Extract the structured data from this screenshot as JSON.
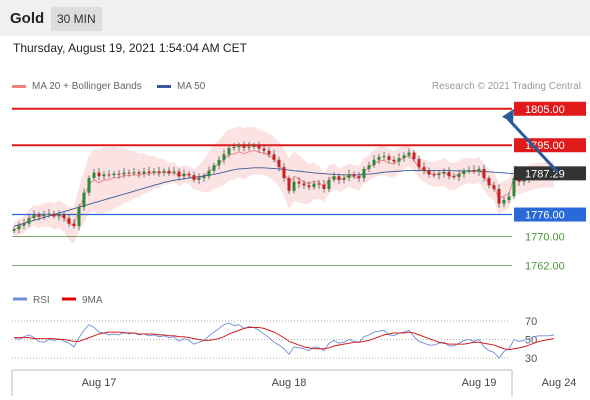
{
  "header": {
    "title": "Gold",
    "timeframe": "30 MIN"
  },
  "datetime": "Thursday, August 19, 2021 1:54:04 AM CET",
  "credit": "Research © 2021 Trading Central",
  "legend": {
    "price": [
      {
        "name": "MA 20 + Bollinger Bands",
        "color": "#f08080"
      },
      {
        "name": "MA 50",
        "color": "#3a5a9a"
      }
    ],
    "rsi": [
      {
        "name": "RSI",
        "color": "#6a8fd8"
      },
      {
        "name": "9MA",
        "color": "#e00000"
      }
    ]
  },
  "chart_data": {
    "type": "candlestick",
    "ylim": [
      1757.5,
      1808.5
    ],
    "current_price": {
      "label": "1787.29",
      "value": 1787.29
    },
    "levels": [
      {
        "label": "1805.00",
        "value": 1805.0,
        "color": "#e01a1a",
        "style": "resistance-bold"
      },
      {
        "label": "1795.00",
        "value": 1795.0,
        "color": "#e01a1a",
        "style": "resistance-bold"
      },
      {
        "label": "1776.00",
        "value": 1776.0,
        "color": "#2a6ad8",
        "style": "pivot"
      },
      {
        "label": "1770.00",
        "value": 1770.0,
        "color": "#4a9a3a",
        "style": "support"
      },
      {
        "label": "1762.00",
        "value": 1762.0,
        "color": "#4a9a3a",
        "style": "support"
      }
    ],
    "arrow": {
      "from": 1787.29,
      "to": 1805.0,
      "color": "#2a5a9a"
    },
    "x_ticks": [
      {
        "label": "Aug 17",
        "index": 17
      },
      {
        "label": "Aug 18",
        "index": 55
      },
      {
        "label": "Aug 19",
        "index": 93
      },
      {
        "label": "Aug 24",
        "index": 109
      }
    ],
    "closes": [
      1772,
      1773,
      1773.5,
      1775,
      1776,
      1775.5,
      1776,
      1776.2,
      1775.5,
      1776,
      1775,
      1773.5,
      1772.8,
      1778,
      1782,
      1786,
      1787.5,
      1786.5,
      1787,
      1786.8,
      1787.2,
      1787,
      1787.5,
      1787.3,
      1787.6,
      1787.2,
      1787.8,
      1787.4,
      1787.9,
      1787.5,
      1788,
      1787.4,
      1787.8,
      1786.5,
      1787.2,
      1786.8,
      1785.5,
      1786,
      1786.5,
      1788,
      1789.5,
      1791,
      1792.5,
      1794.2,
      1794.5,
      1795,
      1794.3,
      1794.6,
      1794.8,
      1794.1,
      1793.5,
      1792.5,
      1791,
      1789,
      1786,
      1782.5,
      1785,
      1784.5,
      1784,
      1783.5,
      1784.5,
      1784.2,
      1783,
      1785.5,
      1786.5,
      1785.5,
      1786,
      1787,
      1786.5,
      1786,
      1788.5,
      1789.5,
      1791,
      1791.8,
      1792,
      1791,
      1790.5,
      1791.5,
      1792.2,
      1793,
      1791.2,
      1789,
      1788,
      1787,
      1786.8,
      1787.2,
      1787.7,
      1786.5,
      1786.3,
      1787.1,
      1788,
      1788.2,
      1787.8,
      1788.5,
      1786,
      1784,
      1783,
      1779,
      1780,
      1781,
      1786,
      1785,
      1785.5,
      1786,
      1786.5,
      1786.8,
      1787,
      1787.1,
      1787.29
    ],
    "ma20_rel": [
      -0.3,
      -0.3,
      -0.3,
      -0.2,
      -0.2,
      -0.2,
      -0.1,
      -0.1,
      0,
      0,
      0.1,
      0.1,
      0.2,
      -0.5,
      -1.2,
      -1.8,
      -2.0,
      -1.8,
      -1.5,
      -1.3,
      -1.1,
      -0.9,
      -0.8,
      -0.7,
      -0.6,
      -0.5,
      -0.5,
      -0.4,
      -0.3,
      -0.3,
      -0.3,
      -0.2,
      -0.2,
      -0.1,
      -0.1,
      0,
      0.1,
      0.1,
      0.1,
      -0.3,
      -0.6,
      -1.0,
      -1.4,
      -1.8,
      -1.9,
      -1.8,
      -1.6,
      -1.4,
      -1.2,
      -1.0,
      -0.7,
      -0.3,
      0.2,
      0.8,
      1.5,
      2.0,
      1.5,
      1.2,
      1.0,
      0.9,
      0.7,
      0.6,
      0.5,
      0.2,
      0,
      0,
      0,
      -0.2,
      -0.2,
      -0.1,
      -0.5,
      -0.7,
      -1.0,
      -1.1,
      -1.1,
      -0.9,
      -0.7,
      -0.7,
      -0.7,
      -0.7,
      -0.4,
      -0.1,
      0.1,
      0.2,
      0.2,
      0.1,
      0,
      0.1,
      0.1,
      0,
      -0.1,
      -0.1,
      0,
      -0.1,
      0.3,
      0.6,
      0.8,
      1.3,
      1.1,
      0.8,
      0.1,
      0.1,
      0,
      0,
      -0.1,
      -0.1,
      -0.2,
      -0.2,
      -0.3
    ],
    "ma50": [
      1772.8,
      1773.2,
      1773.6,
      1774,
      1774.4,
      1774.8,
      1775.2,
      1775.6,
      1776,
      1776.4,
      1776.8,
      1777.2,
      1777.6,
      1778,
      1778.4,
      1778.8,
      1779.2,
      1779.6,
      1780,
      1780.4,
      1780.8,
      1781.2,
      1781.6,
      1782,
      1782.4,
      1782.8,
      1783.2,
      1783.6,
      1784,
      1784.4,
      1784.8,
      1785.1,
      1785.4,
      1785.6,
      1785.8,
      1786,
      1786.2,
      1786.4,
      1786.6,
      1786.8,
      1787,
      1787.3,
      1787.6,
      1788,
      1788.3,
      1788.5,
      1788.6,
      1788.7,
      1788.8,
      1788.8,
      1788.8,
      1788.7,
      1788.6,
      1788.5,
      1788.4,
      1788.2,
      1788,
      1787.9,
      1787.7,
      1787.6,
      1787.4,
      1787.3,
      1787.2,
      1787.1,
      1787,
      1786.9,
      1786.9,
      1786.9,
      1786.9,
      1786.9,
      1787,
      1787.1,
      1787.2,
      1787.4,
      1787.6,
      1787.7,
      1787.8,
      1787.9,
      1788,
      1788.1,
      1788.1,
      1788.1,
      1788.1,
      1788.1,
      1788.1,
      1788.1,
      1788.1,
      1788.1,
      1788,
      1788,
      1787.9,
      1787.9,
      1787.9,
      1787.9,
      1787.8,
      1787.7,
      1787.6,
      1787.5,
      1787.4,
      1787.3,
      1787.2,
      1787.2,
      1787.2,
      1787.2,
      1787.2,
      1787.2,
      1787.2,
      1787.2,
      1787.2
    ],
    "bb_width": [
      2.0,
      2.2,
      2.4,
      2.6,
      2.8,
      3.0,
      3.2,
      3.4,
      3.6,
      3.8,
      4.0,
      4.5,
      5.0,
      6.0,
      7.0,
      8.0,
      8.5,
      9.0,
      9.0,
      8.8,
      8.5,
      8.0,
      7.5,
      7.0,
      6.5,
      6.0,
      5.5,
      5.0,
      4.5,
      4.0,
      3.5,
      3.0,
      2.8,
      2.6,
      2.5,
      2.5,
      2.8,
      3.5,
      4.5,
      5.5,
      6.0,
      6.5,
      7.0,
      7.0,
      7.0,
      7.0,
      7.0,
      6.8,
      6.5,
      6.2,
      6.0,
      6.0,
      6.0,
      6.2,
      6.5,
      7.0,
      6.8,
      6.5,
      6.0,
      5.5,
      5.0,
      4.5,
      4.0,
      3.8,
      3.5,
      3.3,
      3.2,
      3.2,
      3.3,
      3.4,
      3.5,
      3.6,
      3.8,
      4.0,
      4.0,
      3.8,
      3.6,
      3.4,
      3.2,
      3.0,
      3.0,
      3.0,
      3.0,
      3.2,
      3.4,
      3.6,
      3.8,
      3.8,
      3.8,
      3.7,
      3.6,
      3.5,
      3.5,
      3.5,
      3.6,
      3.8,
      4.0,
      4.2,
      4.2,
      4.0,
      3.8,
      3.6,
      3.5,
      3.5,
      3.5,
      3.5,
      3.5,
      3.5,
      3.5
    ],
    "rsi": {
      "ylim": [
        20,
        80
      ],
      "ticks": [
        70,
        50,
        30
      ],
      "values": [
        52,
        50,
        53,
        55,
        52,
        48,
        47,
        50,
        49,
        51,
        48,
        46,
        42,
        52,
        60,
        66,
        63,
        58,
        57,
        55,
        56,
        55,
        58,
        56,
        57,
        55,
        56,
        54,
        55,
        53,
        54,
        52,
        53,
        48,
        51,
        49,
        45,
        47,
        49,
        54,
        58,
        62,
        66,
        68,
        65,
        66,
        62,
        64,
        63,
        60,
        56,
        52,
        47,
        44,
        40,
        34,
        42,
        41,
        40,
        38,
        42,
        41,
        38,
        46,
        49,
        46,
        47,
        50,
        48,
        47,
        53,
        55,
        58,
        59,
        60,
        55,
        54,
        57,
        58,
        60,
        53,
        48,
        46,
        44,
        44,
        46,
        47,
        43,
        43,
        46,
        49,
        50,
        48,
        50,
        42,
        38,
        36,
        30,
        37,
        40,
        50,
        48,
        49,
        51,
        53,
        54,
        54,
        54,
        55
      ],
      "ma9": [
        52,
        52,
        52,
        52,
        51,
        51,
        51,
        51,
        51,
        50,
        50,
        49,
        48,
        48,
        50,
        52,
        54,
        56,
        57,
        58,
        58,
        58,
        57,
        57,
        57,
        56,
        56,
        56,
        56,
        55,
        55,
        54,
        54,
        53,
        53,
        52,
        51,
        50,
        49,
        49,
        50,
        51,
        53,
        56,
        58,
        60,
        62,
        63,
        63,
        63,
        62,
        60,
        58,
        55,
        52,
        48,
        46,
        44,
        42,
        41,
        40,
        40,
        40,
        41,
        43,
        44,
        45,
        46,
        47,
        47,
        48,
        49,
        51,
        53,
        55,
        56,
        57,
        57,
        57,
        58,
        57,
        55,
        53,
        51,
        49,
        47,
        46,
        45,
        45,
        45,
        45,
        46,
        47,
        47,
        46,
        45,
        44,
        42,
        40,
        39,
        40,
        41,
        42,
        44,
        46,
        48,
        49,
        50,
        51
      ]
    }
  }
}
